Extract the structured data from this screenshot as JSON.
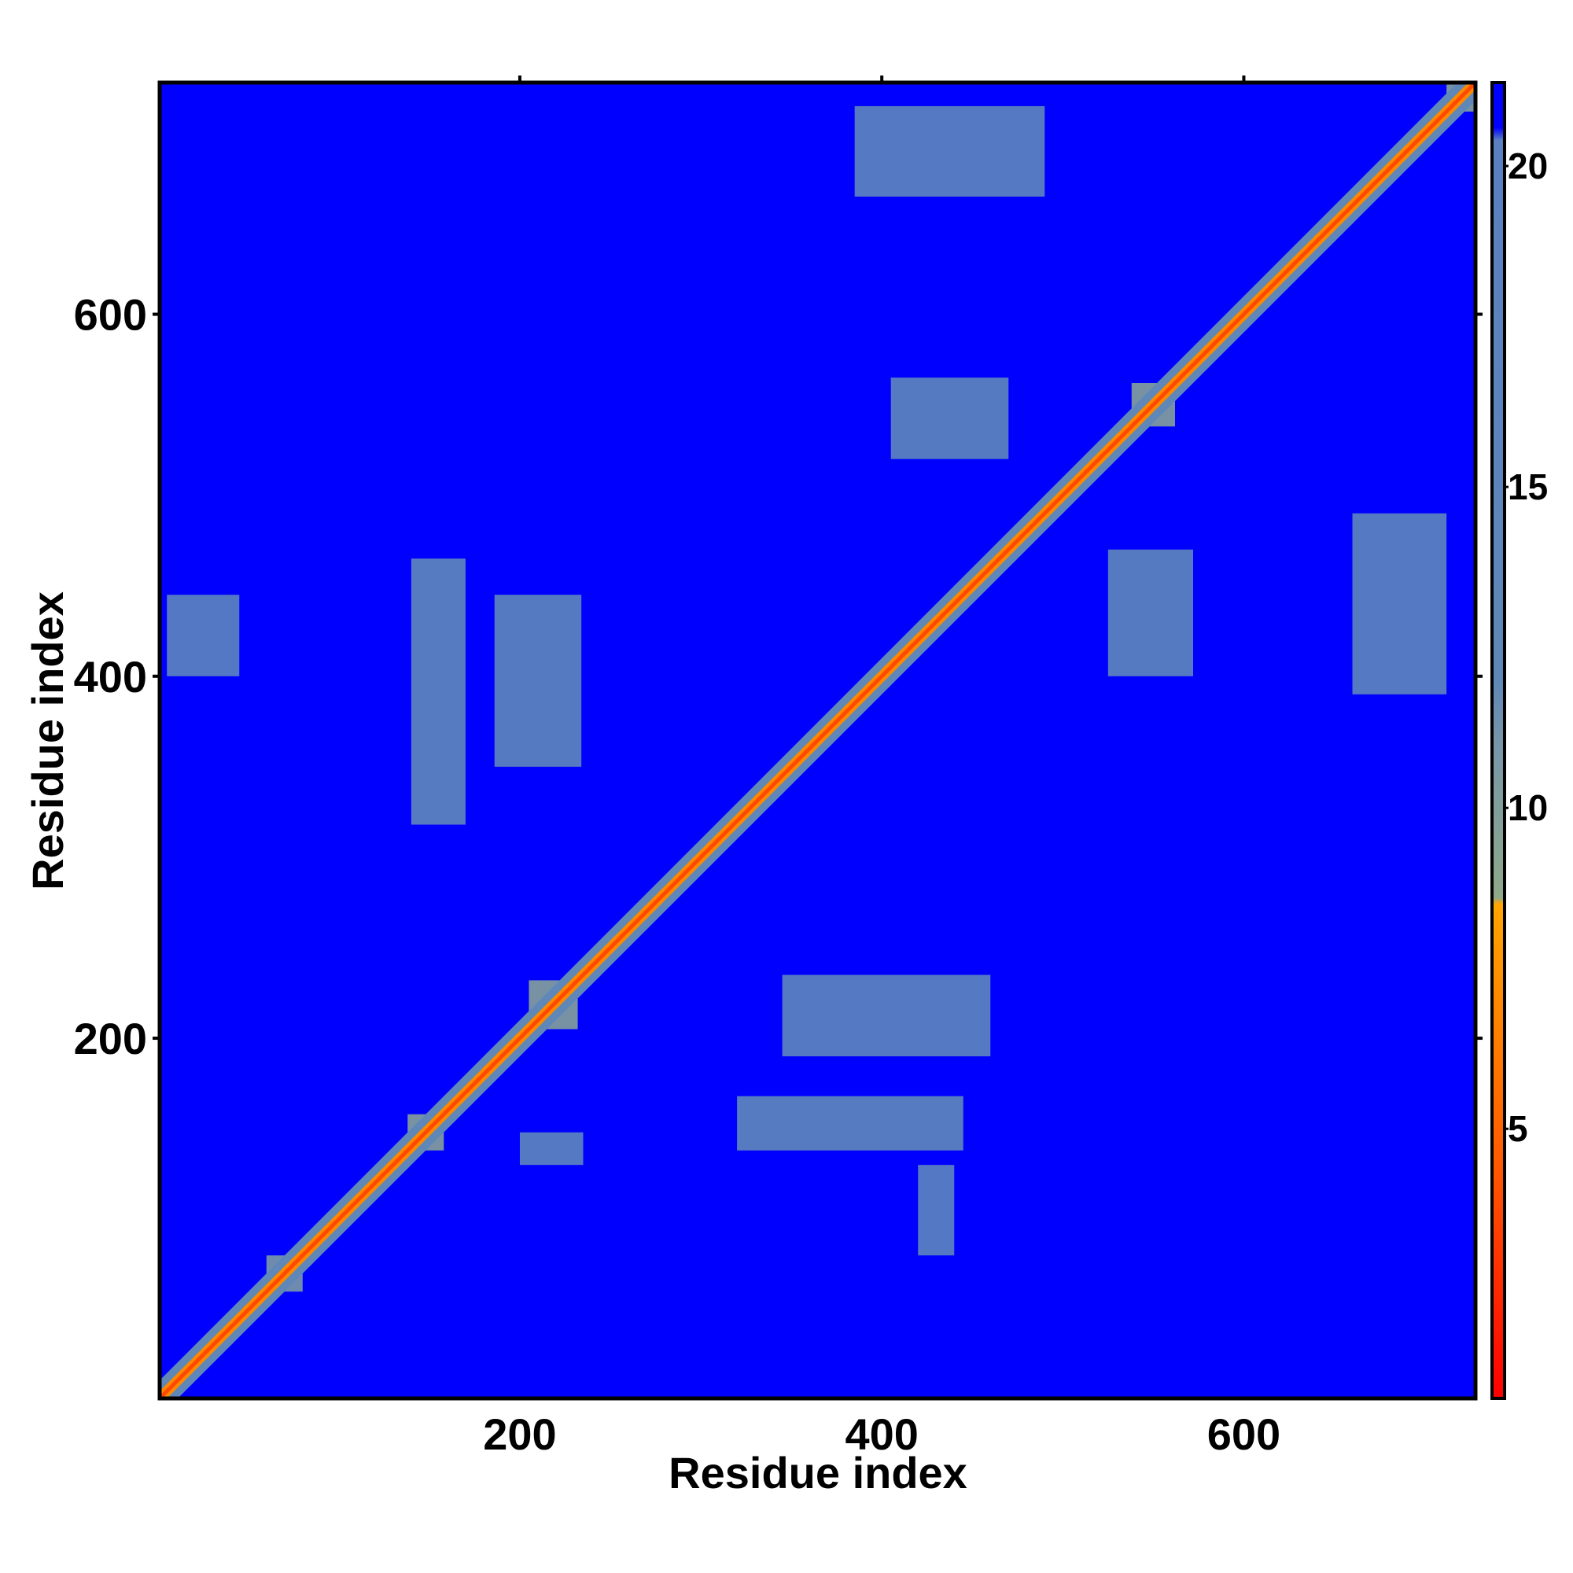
{
  "chart_data": {
    "type": "heatmap",
    "xlabel": "Residue index",
    "ylabel": "Residue index",
    "xlim": [
      1,
      728
    ],
    "ylim": [
      1,
      728
    ],
    "xticks": [
      200,
      400,
      600
    ],
    "yticks": [
      200,
      400,
      600
    ],
    "background_value": 21.3,
    "colorbar": {
      "lim": [
        0.8,
        21.3
      ],
      "ticks": [
        5,
        10,
        15,
        20
      ]
    },
    "colorscale": [
      [
        0.8,
        "#ff0000"
      ],
      [
        4.5,
        "#ff5a00"
      ],
      [
        8.5,
        "#ffa500"
      ],
      [
        8.6,
        "#8fa88a"
      ],
      [
        11,
        "#7896a8"
      ],
      [
        12,
        "#5f88b8"
      ],
      [
        20.4,
        "#5a80c0"
      ],
      [
        20.6,
        "#0000ff"
      ],
      [
        21.3,
        "#0000ff"
      ]
    ],
    "diagonal_bands": [
      {
        "width": 10,
        "value": 12
      },
      {
        "width": 4,
        "value": 7
      },
      {
        "width": 1.5,
        "value": 3.8
      }
    ],
    "regions": [
      {
        "x": [
          320,
          445
        ],
        "y": [
          138,
          168
        ],
        "value": 15
      },
      {
        "x": [
          140,
          170
        ],
        "y": [
          318,
          465
        ],
        "value": 15
      },
      {
        "x": [
          186,
          234
        ],
        "y": [
          350,
          445
        ],
        "value": 16
      },
      {
        "x": [
          385,
          490
        ],
        "y": [
          665,
          715
        ],
        "value": 17
      },
      {
        "x": [
          405,
          470
        ],
        "y": [
          520,
          565
        ],
        "value": 16
      },
      {
        "x": [
          525,
          572
        ],
        "y": [
          400,
          470
        ],
        "value": 16
      },
      {
        "x": [
          660,
          712
        ],
        "y": [
          390,
          490
        ],
        "value": 17
      },
      {
        "x": [
          345,
          460
        ],
        "y": [
          190,
          235
        ],
        "value": 17
      },
      {
        "x": [
          5,
          45
        ],
        "y": [
          400,
          445
        ],
        "value": 18
      },
      {
        "x": [
          200,
          235
        ],
        "y": [
          130,
          148
        ],
        "value": 17
      },
      {
        "x": [
          420,
          440
        ],
        "y": [
          80,
          130
        ],
        "value": 18
      },
      {
        "x": [
          205,
          232
        ],
        "y": [
          205,
          232
        ],
        "value": 10
      },
      {
        "x": [
          138,
          158
        ],
        "y": [
          138,
          158
        ],
        "value": 10
      },
      {
        "x": [
          538,
          562
        ],
        "y": [
          538,
          562
        ],
        "value": 10
      },
      {
        "x": [
          60,
          80
        ],
        "y": [
          60,
          80
        ],
        "value": 11
      },
      {
        "x": [
          712,
          728
        ],
        "y": [
          712,
          728
        ],
        "value": 10
      }
    ]
  }
}
